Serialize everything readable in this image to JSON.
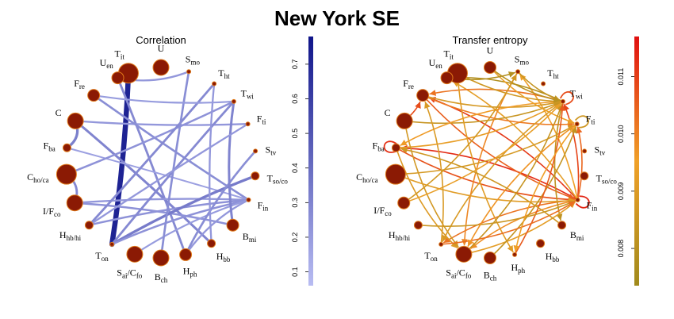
{
  "title": "New York SE",
  "panels": [
    {
      "title": "Correlation",
      "colorbar": {
        "ticks": [
          "0.1",
          "0.2",
          "0.3",
          "0.4",
          "0.5",
          "0.6",
          "0.7"
        ],
        "tick_values": [
          0.1,
          0.2,
          0.3,
          0.4,
          0.5,
          0.6,
          0.7
        ],
        "min": 0.06,
        "max": 0.78
      },
      "node_size": {
        "Tit": 5,
        "U": 4,
        "Smo": 1,
        "Tht": 1,
        "Twi": 1,
        "Fti": 1,
        "Stv": 1,
        "Tso/co": 2,
        "Fin": 1,
        "Bmi": 3,
        "Hbb": 2,
        "Hph": 3,
        "Bch": 4,
        "Sai/Cfo": 4,
        "Ton": 1,
        "Hhb/hi": 2,
        "I/Fco": 4,
        "Cho/ca": 5,
        "Fba": 2,
        "C": 4,
        "Fre": 3,
        "Uen": 3
      },
      "edges": [
        {
          "from": "Tit",
          "to": "Ton",
          "value": 0.72
        },
        {
          "from": "Uen",
          "to": "Hph",
          "value": 0.28
        },
        {
          "from": "Uen",
          "to": "Smo",
          "value": 0.22
        },
        {
          "from": "C",
          "to": "Fba",
          "value": 0.32
        },
        {
          "from": "C",
          "to": "Hbb",
          "value": 0.3
        },
        {
          "from": "C",
          "to": "Fti",
          "value": 0.22
        },
        {
          "from": "Fre",
          "to": "Fin",
          "value": 0.26
        },
        {
          "from": "Fba",
          "to": "Fin",
          "value": 0.18
        },
        {
          "from": "Cho/ca",
          "to": "Twi",
          "value": 0.24
        },
        {
          "from": "I/Fco",
          "to": "Cho/ca",
          "value": 0.28
        },
        {
          "from": "I/Fco",
          "to": "Bmi",
          "value": 0.24
        },
        {
          "from": "I/Fco",
          "to": "Fin",
          "value": 0.22
        },
        {
          "from": "Hhb/hi",
          "to": "Tht",
          "value": 0.28
        },
        {
          "from": "Hhb/hi",
          "to": "Fin",
          "value": 0.24
        },
        {
          "from": "Ton",
          "to": "Tso/co",
          "value": 0.34
        },
        {
          "from": "Ton",
          "to": "Twi",
          "value": 0.28
        },
        {
          "from": "Ton",
          "to": "Fin",
          "value": 0.24
        },
        {
          "from": "Sai/Cfo",
          "to": "Fin",
          "value": 0.2
        },
        {
          "from": "Bch",
          "to": "Smo",
          "value": 0.26
        },
        {
          "from": "Hph",
          "to": "Stv",
          "value": 0.26
        },
        {
          "from": "Hph",
          "to": "Fin",
          "value": 0.22
        },
        {
          "from": "Hbb",
          "to": "Tht",
          "value": 0.22
        },
        {
          "from": "Bmi",
          "to": "Twi",
          "value": 0.3
        },
        {
          "from": "Twi",
          "to": "Fre",
          "value": 0.2
        },
        {
          "from": "Fti",
          "to": "Hhb/hi",
          "value": 0.22
        }
      ]
    },
    {
      "title": "Transfer entropy",
      "colorbar": {
        "ticks": [
          "0.008",
          "0.009",
          "0.010",
          "0.011"
        ],
        "tick_values": [
          0.008,
          0.009,
          0.01,
          0.011
        ],
        "min": 0.00735,
        "max": 0.0117
      },
      "node_size": {
        "Tit": 5,
        "U": 3,
        "Smo": 1,
        "Tht": 1,
        "Twi": 1,
        "Fti": 1,
        "Stv": 1,
        "Tso/co": 2,
        "Fin": 1,
        "Bmi": 2,
        "Hbb": 2,
        "Hph": 1,
        "Bch": 3,
        "Sai/Cfo": 4,
        "Ton": 1,
        "Hhb/hi": 2,
        "I/Fco": 3,
        "Cho/ca": 5,
        "Fba": 2,
        "C": 4,
        "Fre": 3,
        "Uen": 3
      },
      "edges": [
        {
          "from": "Fin",
          "to": "Fin",
          "value": 0.0114
        },
        {
          "from": "Fba",
          "to": "Fba",
          "value": 0.0112
        },
        {
          "from": "Twi",
          "to": "Twi",
          "value": 0.0108
        },
        {
          "from": "Fti",
          "to": "Fti",
          "value": 0.0086
        },
        {
          "from": "Fin",
          "to": "Fba",
          "value": 0.0113
        },
        {
          "from": "Fin",
          "to": "Fre",
          "value": 0.0111
        },
        {
          "from": "Fin",
          "to": "Twi",
          "value": 0.0109
        },
        {
          "from": "Fin",
          "to": "Fti",
          "value": 0.0104
        },
        {
          "from": "Fin",
          "to": "Sai/Cfo",
          "value": 0.0098
        },
        {
          "from": "Fin",
          "to": "Ton",
          "value": 0.0102
        },
        {
          "from": "Fin",
          "to": "Uen",
          "value": 0.0092
        },
        {
          "from": "Fin",
          "to": "Smo",
          "value": 0.0095
        },
        {
          "from": "Fba",
          "to": "Fin",
          "value": 0.0107
        },
        {
          "from": "Fba",
          "to": "Twi",
          "value": 0.0093
        },
        {
          "from": "Fba",
          "to": "Sai/Cfo",
          "value": 0.009
        },
        {
          "from": "Fre",
          "to": "Fin",
          "value": 0.0105
        },
        {
          "from": "Fre",
          "to": "Fti",
          "value": 0.0101
        },
        {
          "from": "Fre",
          "to": "Twi",
          "value": 0.0088
        },
        {
          "from": "C",
          "to": "Fre",
          "value": 0.0108
        },
        {
          "from": "C",
          "to": "Twi",
          "value": 0.0084
        },
        {
          "from": "C",
          "to": "Sai/Cfo",
          "value": 0.0087
        },
        {
          "from": "Twi",
          "to": "Fre",
          "value": 0.0102
        },
        {
          "from": "Twi",
          "to": "Uen",
          "value": 0.0078
        },
        {
          "from": "Twi",
          "to": "Fba",
          "value": 0.0096
        },
        {
          "from": "Twi",
          "to": "Bmi",
          "value": 0.0082
        },
        {
          "from": "Twi",
          "to": "Ton",
          "value": 0.0089
        },
        {
          "from": "Smo",
          "to": "Twi",
          "value": 0.0083
        },
        {
          "from": "Smo",
          "to": "Sai/Cfo",
          "value": 0.0099
        },
        {
          "from": "Tit",
          "to": "Twi",
          "value": 0.0086
        },
        {
          "from": "Tit",
          "to": "Hph",
          "value": 0.0091
        },
        {
          "from": "U",
          "to": "Twi",
          "value": 0.008
        },
        {
          "from": "U",
          "to": "Fti",
          "value": 0.0094
        },
        {
          "from": "Uen",
          "to": "Smo",
          "value": 0.0079
        },
        {
          "from": "Cho/ca",
          "to": "Fin",
          "value": 0.0091
        },
        {
          "from": "Cho/ca",
          "to": "Fti",
          "value": 0.0088
        },
        {
          "from": "I/Fco",
          "to": "Smo",
          "value": 0.0087
        },
        {
          "from": "I/Fco",
          "to": "Twi",
          "value": 0.0093
        },
        {
          "from": "Sai/Cfo",
          "to": "Fin",
          "value": 0.0092
        },
        {
          "from": "Sai/Cfo",
          "to": "Twi",
          "value": 0.0084
        },
        {
          "from": "Bch",
          "to": "Fti",
          "value": 0.0083
        },
        {
          "from": "Hph",
          "to": "Twi",
          "value": 0.0106
        },
        {
          "from": "Hhb/hi",
          "to": "Fin",
          "value": 0.0085
        },
        {
          "from": "Ton",
          "to": "Fre",
          "value": 0.0089
        },
        {
          "from": "Ton",
          "to": "Fin",
          "value": 0.0103
        },
        {
          "from": "Fti",
          "to": "Hph",
          "value": 0.0095
        },
        {
          "from": "Fti",
          "to": "Sai/Cfo",
          "value": 0.0097
        },
        {
          "from": "Bmi",
          "to": "Fba",
          "value": 0.0086
        }
      ]
    }
  ],
  "node_labels": [
    {
      "id": "Tit",
      "base": "T",
      "sub": "it"
    },
    {
      "id": "U",
      "base": "U",
      "sub": ""
    },
    {
      "id": "Smo",
      "base": "S",
      "sub": "mo"
    },
    {
      "id": "Tht",
      "base": "T",
      "sub": "ht"
    },
    {
      "id": "Twi",
      "base": "T",
      "sub": "wi"
    },
    {
      "id": "Fti",
      "base": "F",
      "sub": "ti"
    },
    {
      "id": "Stv",
      "base": "S",
      "sub": "tv"
    },
    {
      "id": "Tso/co",
      "base": "T",
      "sub": "so/co"
    },
    {
      "id": "Fin",
      "base": "F",
      "sub": "in"
    },
    {
      "id": "Bmi",
      "base": "B",
      "sub": "mi"
    },
    {
      "id": "Hbb",
      "base": "H",
      "sub": "bb"
    },
    {
      "id": "Hph",
      "base": "H",
      "sub": "ph"
    },
    {
      "id": "Bch",
      "base": "B",
      "sub": "ch"
    },
    {
      "id": "Sai/Cfo",
      "base": "S",
      "sub": "ai",
      "base2": "/C",
      "sub2": "fo"
    },
    {
      "id": "Ton",
      "base": "T",
      "sub": "on"
    },
    {
      "id": "Hhb/hi",
      "base": "H",
      "sub": "hb/hi"
    },
    {
      "id": "I/Fco",
      "base": "I/F",
      "sub": "co"
    },
    {
      "id": "Cho/ca",
      "base": "C",
      "sub": "ho/ca"
    },
    {
      "id": "Fba",
      "base": "F",
      "sub": "ba"
    },
    {
      "id": "C",
      "base": "C",
      "sub": ""
    },
    {
      "id": "Fre",
      "base": "F",
      "sub": "re"
    },
    {
      "id": "Uen",
      "base": "U",
      "sub": "en"
    }
  ],
  "colors": {
    "node_fill": "#8b1a04",
    "node_stroke": "#e07a1a",
    "correlation_low": "#b8bcf2",
    "correlation_high": "#10158a",
    "entropy_low": "#a08a1c",
    "entropy_mid": "#f0a028",
    "entropy_high": "#e01010"
  }
}
